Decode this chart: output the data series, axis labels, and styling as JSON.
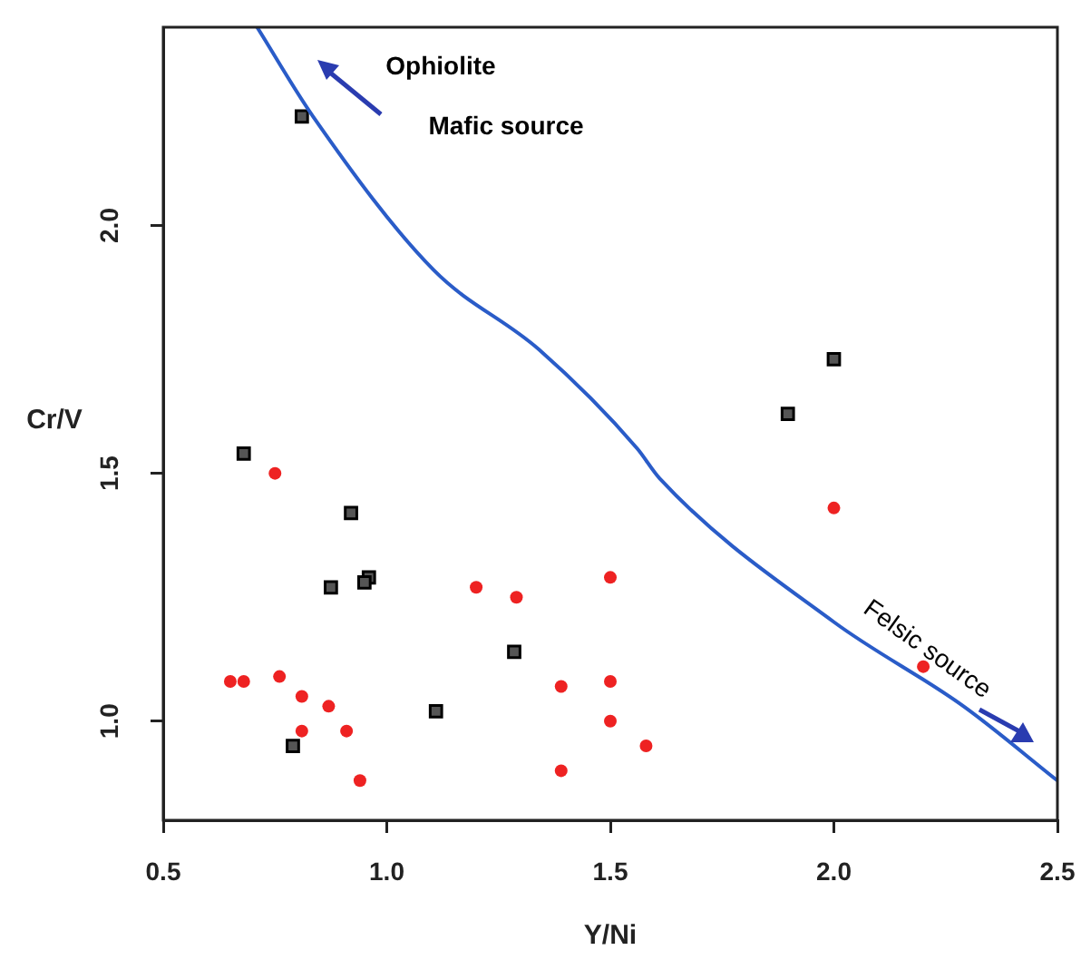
{
  "chart_data": {
    "type": "scatter",
    "xlabel": "Y/Ni",
    "ylabel": "Cr/V",
    "xlim": [
      0.5,
      2.5
    ],
    "xticks": [
      0.5,
      {
        "value": 1,
        "label": "1.0"
      },
      1.5,
      {
        "value": 2,
        "label": "2.0"
      },
      2.5
    ],
    "ylim": [
      0.8,
      2.4
    ],
    "yticks": [
      {
        "value": 1,
        "label": "1.0"
      },
      1.5,
      {
        "value": 2,
        "label": "2.0"
      }
    ],
    "grid": false,
    "legend": false,
    "annotations": [
      "Ophiolite",
      "Mafic source",
      "Felsic source"
    ],
    "series": [
      {
        "type": "line",
        "color": "#2a5cc8",
        "marker": "none",
        "line_style": "solid",
        "x": [
          0.71,
          0.835,
          1.105,
          1.34,
          1.56,
          1.61,
          2.0,
          2.29,
          2.5
        ],
        "values": [
          2.4,
          2.22,
          1.91,
          1.75,
          1.55,
          1.49,
          1.2,
          1.03,
          0.88
        ]
      },
      {
        "color": "#000000",
        "marker": "square",
        "x": [
          0.81,
          2.0,
          1.897,
          0.68,
          0.92,
          0.96,
          0.95,
          0.875,
          1.285,
          1.11,
          0.79
        ],
        "values": [
          2.22,
          1.73,
          1.62,
          1.54,
          1.42,
          1.29,
          1.28,
          1.27,
          1.14,
          1.02,
          0.95
        ]
      },
      {
        "color": "#ee2222",
        "marker": "circle",
        "x": [
          0.75,
          0.65,
          0.68,
          0.76,
          0.81,
          0.87,
          0.81,
          0.91,
          0.94,
          1.2,
          1.29,
          1.39,
          1.39,
          1.5,
          1.5,
          1.5,
          1.58,
          2.0,
          2.2
        ],
        "values": [
          1.5,
          1.08,
          1.08,
          1.09,
          1.05,
          1.03,
          0.98,
          0.98,
          0.88,
          1.27,
          1.25,
          1.07,
          0.9,
          1.29,
          1.08,
          1.0,
          0.95,
          1.43,
          1.11
        ]
      }
    ]
  }
}
